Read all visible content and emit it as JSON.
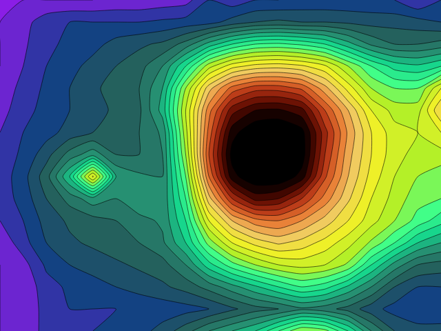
{
  "chart_data": {
    "type": "contour",
    "tick_labels": false,
    "xlim": [
      0,
      19
    ],
    "ylim": [
      15,
      0
    ],
    "zlim": [
      0,
      13
    ],
    "colors": [
      "#8a1ee6",
      "#0f3c8c",
      "#235a5a",
      "#28876e",
      "#14d28c",
      "#3cff8c",
      "#b4f028",
      "#f0f028",
      "#f0c864",
      "#e87832",
      "#b43214",
      "#5a0a00",
      "#000000"
    ],
    "z": [
      [
        0.5,
        0.5,
        0.5,
        0.5,
        0.5,
        0.6,
        0.6,
        0.7,
        0.8,
        1.5,
        1.2,
        1.5,
        1.5,
        1.6,
        1.6,
        1.6,
        1.6,
        1.5,
        1.0,
        1.5
      ],
      [
        0.5,
        0.8,
        1.3,
        1.5,
        1.5,
        1.5,
        1.5,
        1.6,
        1.7,
        1.8,
        2.2,
        2.5,
        2.6,
        2.5,
        2.5,
        2.4,
        2.3,
        2.3,
        2.2,
        2.0
      ],
      [
        0.5,
        0.9,
        1.4,
        1.6,
        1.8,
        2.2,
        2.4,
        2.6,
        3.2,
        4.2,
        5.0,
        5.5,
        5.6,
        5.4,
        5.0,
        4.2,
        3.4,
        3.0,
        3.0,
        3.2
      ],
      [
        0.5,
        1.0,
        1.5,
        1.8,
        2.2,
        2.5,
        2.8,
        3.5,
        5.0,
        6.8,
        7.8,
        8.2,
        8.3,
        8.1,
        7.6,
        6.5,
        5.5,
        4.8,
        4.6,
        5.0
      ],
      [
        0.6,
        1.2,
        1.6,
        2.0,
        2.4,
        2.7,
        3.0,
        4.0,
        6.5,
        8.8,
        10.2,
        10.8,
        10.8,
        10.4,
        9.2,
        7.8,
        6.5,
        6.0,
        6.0,
        7.5
      ],
      [
        0.8,
        1.3,
        1.7,
        2.0,
        2.3,
        2.6,
        2.9,
        4.2,
        7.0,
        9.8,
        11.8,
        12.5,
        12.6,
        12.2,
        10.5,
        9.0,
        7.5,
        6.8,
        6.8,
        8.5
      ],
      [
        1.0,
        1.5,
        1.8,
        2.2,
        2.5,
        2.7,
        3.0,
        3.6,
        6.8,
        10.2,
        12.8,
        13.5,
        13.6,
        13.2,
        11.2,
        9.4,
        8.0,
        7.2,
        7.0,
        7.5
      ],
      [
        1.2,
        1.6,
        2.3,
        3.2,
        3.8,
        3.0,
        3.0,
        3.5,
        6.5,
        10.5,
        13.2,
        13.8,
        13.8,
        13.3,
        11.0,
        9.2,
        8.0,
        7.2,
        6.8,
        6.8
      ],
      [
        1.2,
        1.8,
        2.8,
        4.5,
        7.6,
        4.0,
        3.6,
        3.5,
        6.0,
        10.0,
        12.8,
        13.5,
        13.5,
        12.8,
        10.6,
        9.0,
        7.8,
        7.0,
        6.5,
        6.2
      ],
      [
        1.2,
        1.7,
        2.5,
        3.2,
        3.8,
        3.5,
        4.0,
        3.6,
        5.5,
        8.8,
        11.0,
        12.2,
        12.0,
        11.0,
        9.8,
        8.6,
        7.5,
        6.8,
        6.2,
        6.0
      ],
      [
        1.0,
        1.5,
        2.2,
        2.6,
        2.8,
        3.0,
        3.3,
        3.6,
        5.0,
        7.5,
        9.0,
        9.8,
        10.0,
        9.5,
        8.8,
        8.0,
        7.2,
        6.5,
        5.8,
        5.2
      ],
      [
        0.6,
        1.3,
        2.0,
        2.4,
        2.6,
        2.8,
        3.0,
        3.4,
        4.5,
        6.2,
        7.5,
        8.2,
        8.6,
        8.3,
        7.8,
        7.2,
        6.4,
        5.5,
        4.5,
        4.0
      ],
      [
        0.5,
        0.8,
        1.6,
        2.0,
        2.2,
        2.4,
        2.6,
        2.8,
        3.5,
        4.8,
        5.8,
        6.5,
        7.0,
        7.2,
        7.0,
        6.4,
        5.0,
        3.8,
        3.0,
        2.8
      ],
      [
        0.5,
        0.6,
        1.3,
        1.6,
        1.8,
        2.0,
        2.2,
        2.4,
        2.7,
        3.2,
        3.8,
        4.4,
        5.0,
        5.5,
        5.2,
        4.4,
        3.5,
        2.5,
        2.0,
        2.0
      ],
      [
        0.5,
        0.6,
        1.2,
        1.5,
        1.5,
        1.5,
        1.6,
        1.7,
        1.8,
        2.0,
        2.4,
        2.8,
        3.0,
        3.4,
        3.2,
        2.8,
        2.2,
        1.8,
        1.6,
        1.6
      ],
      [
        0.5,
        0.6,
        1.2,
        1.5,
        1.5,
        1.6,
        1.8,
        2.2,
        2.8,
        3.5,
        4.0,
        4.5,
        5.5,
        6.5,
        6.2,
        5.0,
        3.5,
        2.5,
        2.2,
        2.2
      ]
    ]
  }
}
